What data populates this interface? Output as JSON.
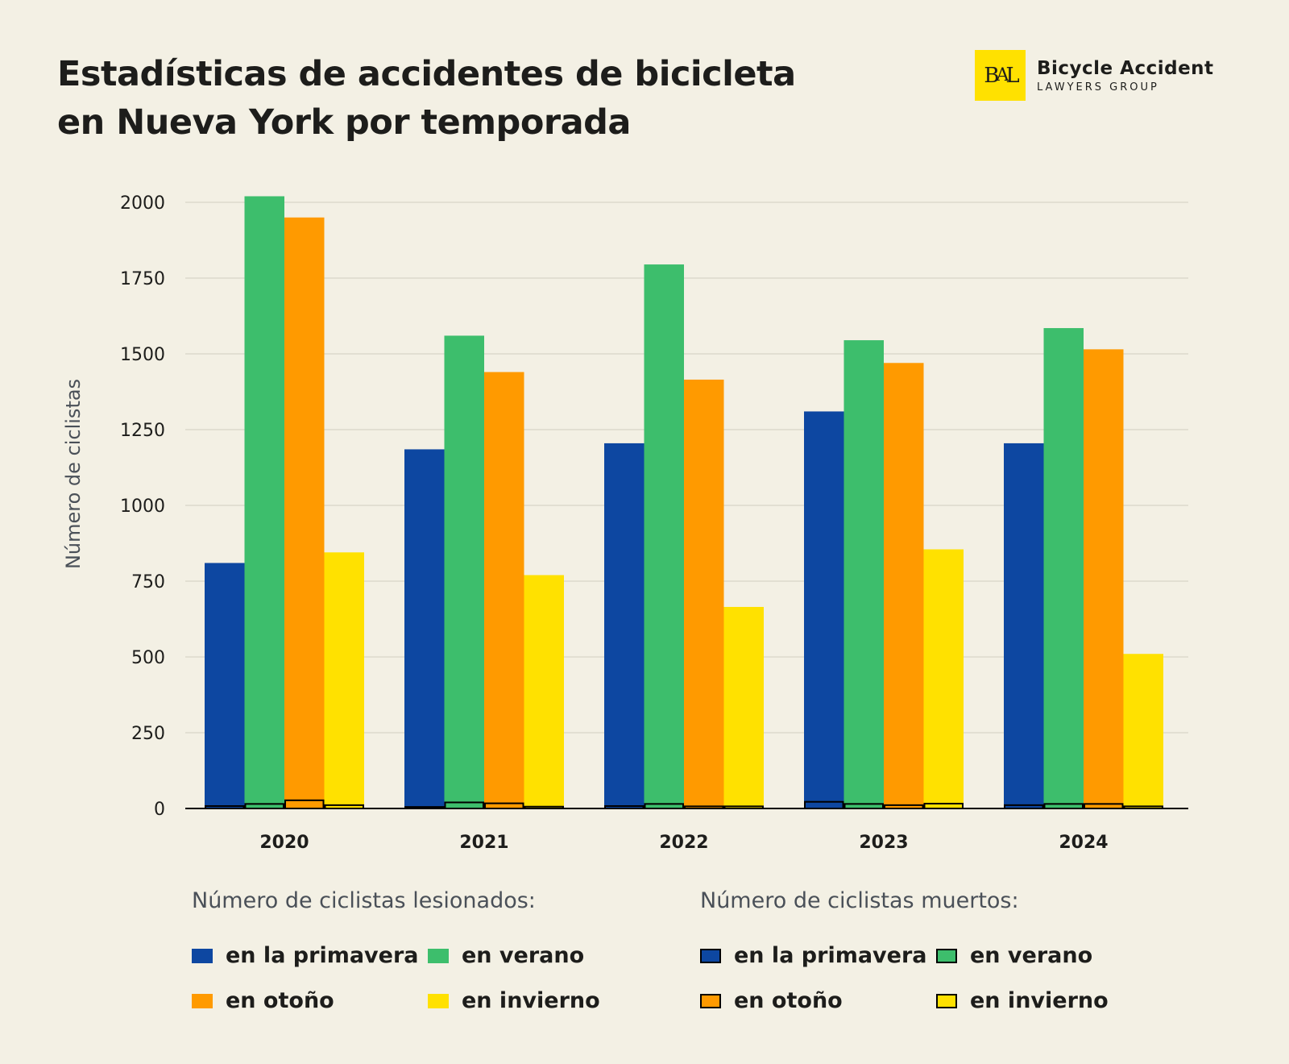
{
  "title": "Estadísticas de accidentes de bicicleta en Nueva York por temporada",
  "logo": {
    "mark": "BAL",
    "line1": "Bicycle Accident",
    "line2": "LAWYERS GROUP"
  },
  "chart_data": {
    "type": "bar",
    "title": "Estadísticas de accidentes de bicicleta en Nueva York por temporada",
    "ylabel": "Número de ciclistas",
    "xlabel": "",
    "ylim": [
      0,
      2000
    ],
    "yticks": [
      0,
      250,
      500,
      750,
      1000,
      1250,
      1500,
      1750,
      2000
    ],
    "grid": true,
    "categories": [
      "2020",
      "2021",
      "2022",
      "2023",
      "2024"
    ],
    "series": [
      {
        "name": "en la primavera",
        "group": "lesionados",
        "color": "#0d47a1",
        "values": [
          810,
          1185,
          1205,
          1310,
          1205
        ]
      },
      {
        "name": "en verano",
        "group": "lesionados",
        "color": "#3dbe6c",
        "values": [
          2020,
          1560,
          1795,
          1545,
          1585
        ]
      },
      {
        "name": "en otoño",
        "group": "lesionados",
        "color": "#ff9a00",
        "values": [
          1950,
          1440,
          1415,
          1470,
          1515
        ]
      },
      {
        "name": "en invierno",
        "group": "lesionados",
        "color": "#ffe100",
        "values": [
          845,
          770,
          665,
          855,
          510
        ]
      },
      {
        "name": "en la primavera",
        "group": "muertos",
        "color": "#0d47a1",
        "values": [
          8,
          5,
          8,
          22,
          11
        ]
      },
      {
        "name": "en verano",
        "group": "muertos",
        "color": "#3dbe6c",
        "values": [
          15,
          20,
          15,
          15,
          15
        ]
      },
      {
        "name": "en otoño",
        "group": "muertos",
        "color": "#ff9a00",
        "values": [
          27,
          17,
          7,
          11,
          15
        ]
      },
      {
        "name": "en invierno",
        "group": "muertos",
        "color": "#ffe100",
        "values": [
          11,
          6,
          7,
          16,
          7
        ]
      }
    ],
    "legend": {
      "placement": "bottom",
      "injured_title": "Número de ciclistas lesionados:",
      "killed_title": "Número de ciclistas muertos:"
    }
  }
}
